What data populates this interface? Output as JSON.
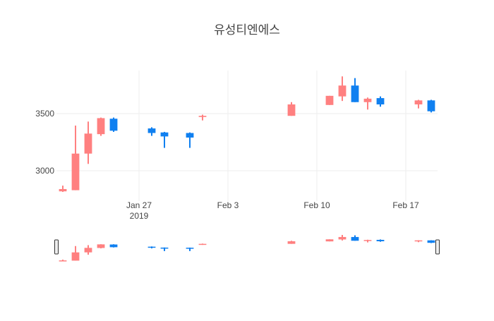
{
  "chart_data": {
    "type": "candlestick",
    "title": "유성티엔에스",
    "increasing_color": "#ff8080",
    "decreasing_color": "#1080f0",
    "xlim": [
      "2019-01-20T12:00",
      "2019-02-19T12:00"
    ],
    "xticks": [
      {
        "value": "2019-01-27",
        "label": "Jan 27\n2019"
      },
      {
        "value": "2019-02-03",
        "label": "Feb 3"
      },
      {
        "value": "2019-02-10",
        "label": "Feb 10"
      },
      {
        "value": "2019-02-17",
        "label": "Feb 17"
      }
    ],
    "ylim": [
      2735,
      3876
    ],
    "yticks": [
      3000,
      3500
    ],
    "grid": true,
    "range_slider": true,
    "x": [
      "2019-01-21",
      "2019-01-22",
      "2019-01-23",
      "2019-01-24",
      "2019-01-25",
      "2019-01-28",
      "2019-01-29",
      "2019-01-31",
      "2019-02-01",
      "2019-02-08",
      "2019-02-11",
      "2019-02-12",
      "2019-02-13",
      "2019-02-14",
      "2019-02-15",
      "2019-02-18",
      "2019-02-19"
    ],
    "open": [
      2820,
      2830,
      3150,
      3320,
      3455,
      3370,
      3335,
      3330,
      3470,
      3480,
      3575,
      3650,
      3745,
      3600,
      3635,
      3580,
      3615
    ],
    "high": [
      2870,
      3395,
      3430,
      3465,
      3465,
      3380,
      3340,
      3335,
      3490,
      3600,
      3655,
      3825,
      3810,
      3640,
      3650,
      3620,
      3620
    ],
    "low": [
      2815,
      2830,
      3060,
      3305,
      3340,
      3305,
      3200,
      3200,
      3440,
      3480,
      3575,
      3610,
      3600,
      3535,
      3560,
      3545,
      3510
    ],
    "close": [
      2840,
      3150,
      3325,
      3460,
      3350,
      3330,
      3300,
      3290,
      3480,
      3580,
      3655,
      3745,
      3600,
      3630,
      3580,
      3615,
      3520
    ]
  }
}
